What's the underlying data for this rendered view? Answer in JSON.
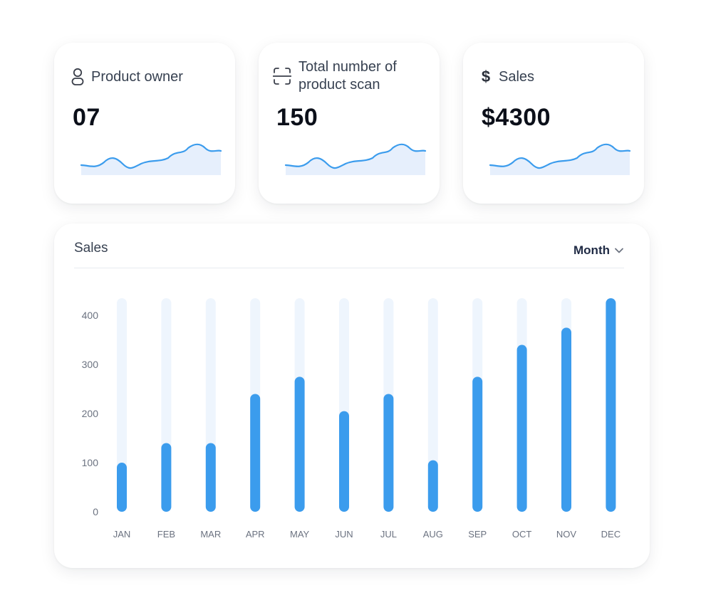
{
  "stats": [
    {
      "label_lines": [
        "Product owner"
      ],
      "value": "07",
      "icon": "user-icon"
    },
    {
      "label_lines": [
        "Total number of",
        "product scan"
      ],
      "value": "150",
      "icon": "scan-icon"
    },
    {
      "label_lines": [
        "Sales"
      ],
      "value": "$4300",
      "icon": "dollar-icon"
    }
  ],
  "sales_panel": {
    "title": "Sales",
    "period_label": "Month"
  },
  "colors": {
    "accent": "#3b9ced",
    "track": "#eef5fd",
    "area_fill": "#e6effc"
  },
  "chart_data": {
    "type": "bar",
    "categories": [
      "JAN",
      "FEB",
      "MAR",
      "APR",
      "MAY",
      "JUN",
      "JUL",
      "AUG",
      "SEP",
      "OCT",
      "NOV",
      "DEC"
    ],
    "values": [
      100,
      140,
      140,
      240,
      275,
      205,
      240,
      105,
      275,
      340,
      375,
      435
    ],
    "yticks": [
      0,
      100,
      200,
      300,
      400
    ],
    "ylim": [
      0,
      435
    ],
    "grid": false
  }
}
